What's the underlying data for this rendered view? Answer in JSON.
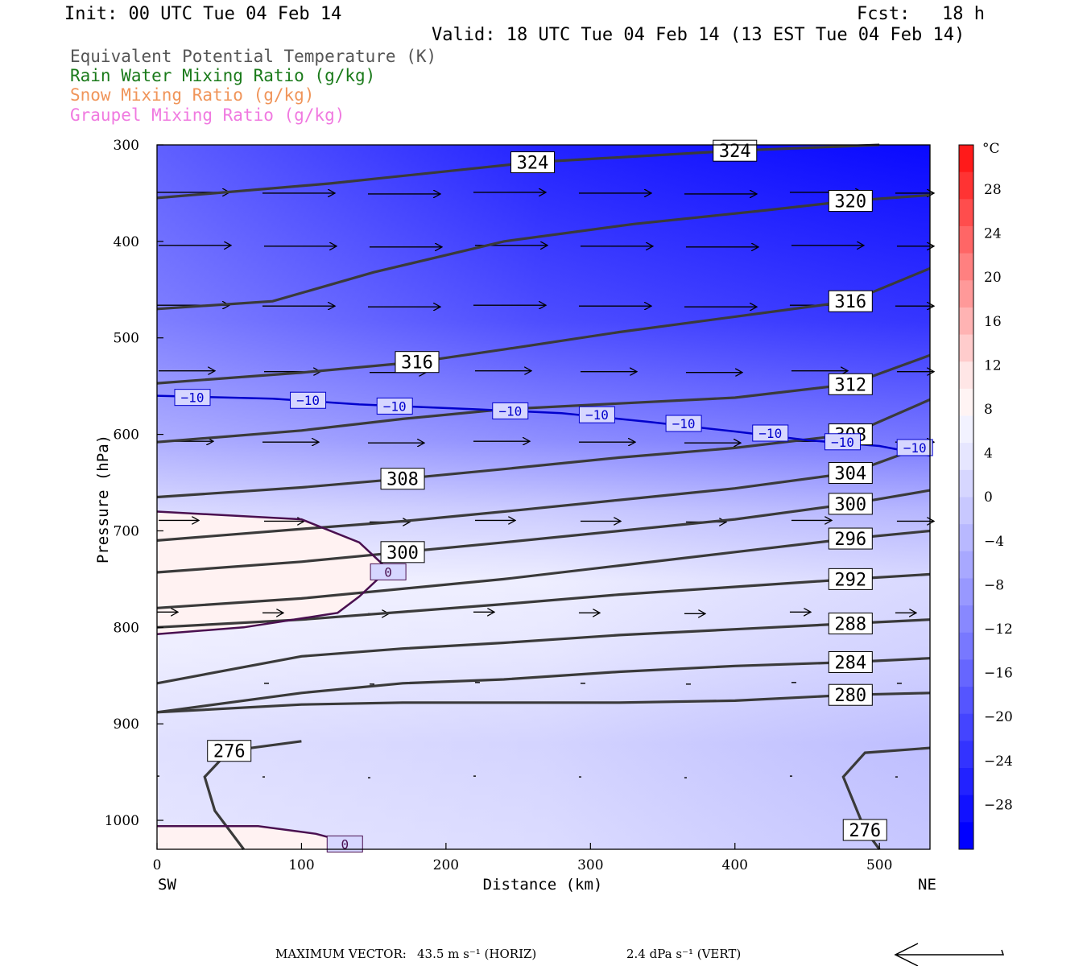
{
  "header": {
    "init": "Init: 00 UTC Tue 04 Feb 14",
    "fcst": "Fcst:   18 h",
    "valid": "Valid: 18 UTC Tue 04 Feb 14 (13 EST Tue 04 Feb 14)"
  },
  "legend": [
    {
      "text": "Equivalent Potential Temperature (K)",
      "color": "#555555"
    },
    {
      "text": "Rain Water Mixing Ratio (g/kg)",
      "color": "#1a7a1a"
    },
    {
      "text": "Snow Mixing Ratio (g/kg)",
      "color": "#f0955a"
    },
    {
      "text": "Graupel Mixing Ratio (g/kg)",
      "color": "#f07ae0"
    }
  ],
  "footer": {
    "max_vector": "MAXIMUM VECTOR:",
    "horiz": "43.5 m s⁻¹ (HORIZ)",
    "vert": "2.4 dPa s⁻¹ (VERT)"
  },
  "chart_data": {
    "type": "heatmap",
    "xlabel": "Distance (km)",
    "ylabel": "Pressure (hPa)",
    "xlim": [
      0,
      535
    ],
    "ylim": [
      1030,
      300
    ],
    "xticks": [
      0,
      100,
      200,
      300,
      400,
      500
    ],
    "yticks": [
      300,
      400,
      500,
      600,
      700,
      800,
      900,
      1000
    ],
    "left_end_label": "SW",
    "right_end_label": "NE",
    "colorbar": {
      "unit": "°C",
      "labels": [
        "28",
        "24",
        "20",
        "16",
        "12",
        "8",
        "4",
        "0",
        "−4",
        "−8",
        "−12",
        "−16",
        "−20",
        "−24",
        "−28"
      ],
      "colors": [
        "#ff1a1a",
        "#ff3333",
        "#ff4d4d",
        "#ff6666",
        "#ff8080",
        "#ff9999",
        "#ffb3b3",
        "#ffcccc",
        "#ffe6e6",
        "#fff4f4",
        "#f2f2ff",
        "#e6e6ff",
        "#d6d6ff",
        "#c8c8ff",
        "#b8b8ff",
        "#a8a8ff",
        "#9898ff",
        "#8888ff",
        "#7878ff",
        "#6666ff",
        "#5555ff",
        "#4444ff",
        "#3333ff",
        "#2222ff",
        "#1111ff",
        "#0000ff"
      ]
    },
    "theta_e_contours": [
      {
        "label": "324",
        "points": [
          [
            0,
            355
          ],
          [
            120,
            340
          ],
          [
            260,
            318
          ],
          [
            400,
            306
          ],
          [
            500,
            300
          ]
        ]
      },
      {
        "label": "320",
        "points": [
          [
            0,
            470
          ],
          [
            80,
            462
          ],
          [
            150,
            432
          ],
          [
            240,
            400
          ],
          [
            330,
            382
          ],
          [
            420,
            368
          ],
          [
            480,
            358
          ],
          [
            535,
            352
          ]
        ]
      },
      {
        "label": "316",
        "points": [
          [
            0,
            547
          ],
          [
            100,
            536
          ],
          [
            180,
            525
          ],
          [
            240,
            512
          ],
          [
            320,
            494
          ],
          [
            400,
            478
          ],
          [
            480,
            462
          ],
          [
            535,
            428
          ]
        ]
      },
      {
        "label": "312",
        "points": [
          [
            0,
            608
          ],
          [
            100,
            596
          ],
          [
            170,
            584
          ],
          [
            240,
            574
          ],
          [
            320,
            568
          ],
          [
            400,
            562
          ],
          [
            480,
            548
          ],
          [
            535,
            518
          ]
        ]
      },
      {
        "label": "308",
        "points": [
          [
            0,
            665
          ],
          [
            100,
            655
          ],
          [
            170,
            646
          ],
          [
            240,
            636
          ],
          [
            320,
            624
          ],
          [
            400,
            614
          ],
          [
            480,
            600
          ],
          [
            535,
            564
          ]
        ]
      },
      {
        "label": "304",
        "points": [
          [
            0,
            710
          ],
          [
            100,
            698
          ],
          [
            170,
            690
          ],
          [
            240,
            680
          ],
          [
            320,
            668
          ],
          [
            400,
            656
          ],
          [
            480,
            640
          ],
          [
            535,
            610
          ]
        ]
      },
      {
        "label": "300",
        "points": [
          [
            0,
            743
          ],
          [
            100,
            732
          ],
          [
            170,
            722
          ],
          [
            240,
            712
          ],
          [
            320,
            700
          ],
          [
            400,
            688
          ],
          [
            480,
            672
          ],
          [
            535,
            658
          ]
        ]
      },
      {
        "label": "296",
        "points": [
          [
            0,
            780
          ],
          [
            100,
            770
          ],
          [
            170,
            760
          ],
          [
            240,
            750
          ],
          [
            320,
            736
          ],
          [
            400,
            722
          ],
          [
            480,
            708
          ],
          [
            535,
            700
          ]
        ]
      },
      {
        "label": "292",
        "points": [
          [
            0,
            800
          ],
          [
            100,
            792
          ],
          [
            170,
            784
          ],
          [
            240,
            776
          ],
          [
            320,
            766
          ],
          [
            400,
            758
          ],
          [
            480,
            750
          ],
          [
            535,
            745
          ]
        ]
      },
      {
        "label": "288",
        "points": [
          [
            0,
            858
          ],
          [
            100,
            830
          ],
          [
            170,
            822
          ],
          [
            240,
            816
          ],
          [
            320,
            808
          ],
          [
            400,
            802
          ],
          [
            480,
            796
          ],
          [
            535,
            792
          ]
        ]
      },
      {
        "label": "284",
        "points": [
          [
            0,
            888
          ],
          [
            100,
            868
          ],
          [
            170,
            858
          ],
          [
            240,
            854
          ],
          [
            320,
            846
          ],
          [
            400,
            840
          ],
          [
            480,
            836
          ],
          [
            535,
            832
          ]
        ]
      },
      {
        "label": "280",
        "points": [
          [
            0,
            888
          ],
          [
            100,
            880
          ],
          [
            170,
            878
          ],
          [
            240,
            878
          ],
          [
            320,
            878
          ],
          [
            400,
            876
          ],
          [
            480,
            870
          ],
          [
            535,
            868
          ]
        ]
      },
      {
        "label": "276",
        "points": [
          [
            60,
            1030
          ],
          [
            40,
            990
          ],
          [
            33,
            955
          ],
          [
            50,
            928
          ],
          [
            100,
            918
          ]
        ]
      },
      {
        "label": "276",
        "points": [
          [
            535,
            925
          ],
          [
            490,
            930
          ],
          [
            475,
            955
          ],
          [
            490,
            1010
          ],
          [
            500,
            1030
          ]
        ]
      }
    ],
    "isotherm_contours": [
      {
        "label": "−10",
        "color": "#0000cc",
        "points": [
          [
            0,
            560
          ],
          [
            80,
            563
          ],
          [
            140,
            569
          ],
          [
            220,
            574
          ],
          [
            280,
            578
          ],
          [
            340,
            587
          ],
          [
            400,
            597
          ],
          [
            450,
            606
          ],
          [
            500,
            612
          ],
          [
            535,
            622
          ]
        ]
      },
      {
        "label": "0",
        "color": "#4a1050",
        "points": [
          [
            0,
            680
          ],
          [
            100,
            688
          ],
          [
            140,
            712
          ],
          [
            160,
            740
          ],
          [
            140,
            768
          ],
          [
            125,
            785
          ],
          [
            60,
            800
          ],
          [
            0,
            807
          ]
        ]
      },
      {
        "label": "0",
        "color": "#4a1050",
        "points": [
          [
            0,
            1006
          ],
          [
            70,
            1006
          ],
          [
            110,
            1014
          ],
          [
            130,
            1022
          ]
        ]
      }
    ],
    "wind_arrow_rows": [
      350,
      405,
      467,
      535,
      608,
      690,
      785,
      858,
      955
    ]
  }
}
